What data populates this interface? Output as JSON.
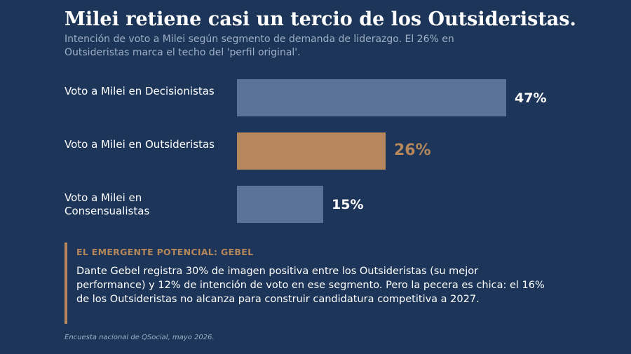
{
  "title": "Milei retiene casi un tercio de los Outsideristas.",
  "subtitle": "Intención de voto a Milei según segmento de demanda de liderazgo. El 26% en Outsideristas marca el techo del 'perfil original'.",
  "chart_data": {
    "type": "bar",
    "orientation": "horizontal",
    "categories": [
      "Voto a Milei en Decisionistas",
      "Voto a Milei en Outsideristas",
      "Voto a Milei en Consensualistas"
    ],
    "values": [
      47,
      26,
      15
    ],
    "value_labels": [
      "47%",
      "26%",
      "15%"
    ],
    "unit": "%",
    "xlim": [
      0,
      47
    ],
    "highlight_index": 1,
    "colors": {
      "default": "#5a7296",
      "highlight": "#b5875a",
      "default_label": "#ffffff",
      "highlight_label": "#b5875a"
    }
  },
  "callout": {
    "title": "EL EMERGENTE POTENCIAL: GEBEL",
    "body": "Dante Gebel registra 30% de imagen positiva entre los Outsideristas (su mejor performance) y 12% de intención de voto en ese segmento. Pero la pecera es chica: el 16% de los Outsideristas no alcanza para construir candidatura competitiva a 2027."
  },
  "source": "Encuesta nacional de QSocial, mayo 2026.",
  "colors": {
    "background": "#1c3558",
    "accent": "#b5875a",
    "muted_text": "#9fb0c6"
  }
}
